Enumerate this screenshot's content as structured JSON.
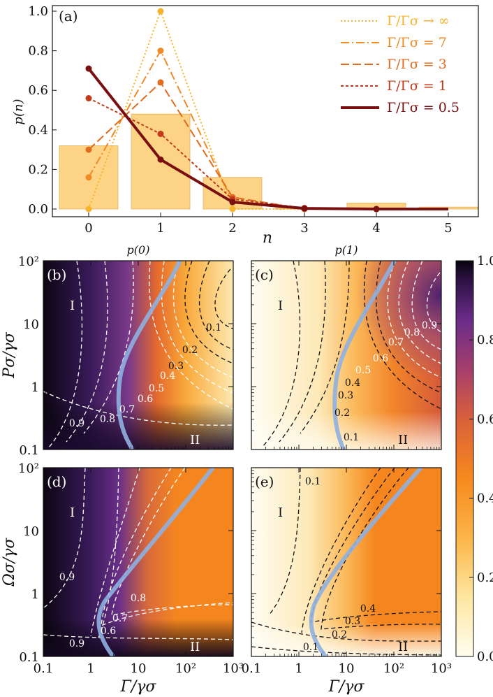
{
  "chart_data": [
    {
      "type": "bar",
      "panel": "(a)",
      "xlabel": "n",
      "ylabel": "p(n)",
      "categories": [
        "0",
        "1",
        "2",
        "3",
        "4",
        "5"
      ],
      "x": [
        0,
        1,
        2,
        3,
        4,
        5
      ],
      "ylim": [
        0,
        1.0
      ],
      "yticks": [
        "0.0",
        "0.2",
        "0.4",
        "0.6",
        "0.8",
        "1.0"
      ],
      "bar_values": [
        0.32,
        0.48,
        0.16,
        0.005,
        0.03,
        0.01
      ],
      "bar_color": "#fdcf7a",
      "series": [
        {
          "name": "Γ/Γσ → ∞",
          "values": [
            0.0,
            1.0,
            0.0,
            0.0,
            0.0,
            0.0
          ],
          "color": "#f6b42a",
          "dash": "2,3",
          "width": 2
        },
        {
          "name": "Γ/Γσ = 7",
          "values": [
            0.16,
            0.8,
            0.04,
            0.0,
            0.0,
            0.0
          ],
          "color": "#f08a24",
          "dash": "12,4,2,4",
          "width": 2
        },
        {
          "name": "Γ/Γσ = 3",
          "values": [
            0.3,
            0.64,
            0.06,
            0.0,
            0.0,
            0.0
          ],
          "color": "#e06a1e",
          "dash": "12,5",
          "width": 2
        },
        {
          "name": "Γ/Γσ = 1",
          "values": [
            0.56,
            0.38,
            0.05,
            0.005,
            0.0,
            0.0
          ],
          "color": "#c23a1a",
          "dash": "4,3",
          "width": 2
        },
        {
          "name": "Γ/Γσ = 0.5",
          "values": [
            0.71,
            0.25,
            0.035,
            0.003,
            0.0,
            0.0
          ],
          "color": "#7a0f0f",
          "dash": "",
          "width": 4
        }
      ],
      "legend": "top-right"
    },
    {
      "type": "heatmap",
      "panel": "(b)",
      "title": "p(0)",
      "ylabel": "Pσ/γσ",
      "x_scale": "log",
      "y_scale": "log",
      "xlim": [
        0.1,
        1000
      ],
      "ylim": [
        0.1,
        100
      ],
      "regions": [
        "I",
        "II"
      ],
      "contour_levels": [
        "0.9",
        "0.8",
        "0.7",
        "0.6",
        "0.5",
        "0.4",
        "0.3",
        "0.2",
        "0.1"
      ]
    },
    {
      "type": "heatmap",
      "panel": "(c)",
      "title": "p(1)",
      "x_scale": "log",
      "y_scale": "log",
      "xlim": [
        0.1,
        1000
      ],
      "ylim": [
        0.1,
        100
      ],
      "regions": [
        "I",
        "II"
      ],
      "contour_levels": [
        "0.9",
        "0.8",
        "0.7",
        "0.6",
        "0.5",
        "0.4",
        "0.3",
        "0.2",
        "0.1"
      ]
    },
    {
      "type": "heatmap",
      "panel": "(d)",
      "xlabel": "Γ/γσ",
      "ylabel": "Ωσ/γσ",
      "x_scale": "log",
      "y_scale": "log",
      "xlim": [
        0.1,
        1000
      ],
      "ylim": [
        0.1,
        100
      ],
      "regions": [
        "I",
        "II"
      ],
      "contour_levels": [
        "0.9",
        "0.8",
        "0.7",
        "0.6",
        "0.9"
      ]
    },
    {
      "type": "heatmap",
      "panel": "(e)",
      "xlabel": "Γ/γσ",
      "x_scale": "log",
      "y_scale": "log",
      "xlim": [
        0.1,
        1000
      ],
      "ylim": [
        0.1,
        100
      ],
      "regions": [
        "I",
        "II"
      ],
      "contour_levels": [
        "0.1",
        "0.4",
        "0.3",
        "0.2",
        "0.1"
      ]
    }
  ],
  "axes": {
    "log_x_ticks": [
      "0.1",
      "1",
      "10",
      "10²",
      "10³"
    ],
    "log_y_ticks": [
      "0.1",
      "1",
      "10",
      "10²"
    ]
  },
  "colorbar": {
    "ticks": [
      "0.0",
      "0.2",
      "0.4",
      "0.6",
      "0.8",
      "1.0"
    ],
    "range": [
      0,
      1
    ],
    "colormap": "inferno_r"
  },
  "colors": {
    "line_blue": "#8fb0e0",
    "contour_white": "#ffffff",
    "contour_black": "#111111"
  }
}
